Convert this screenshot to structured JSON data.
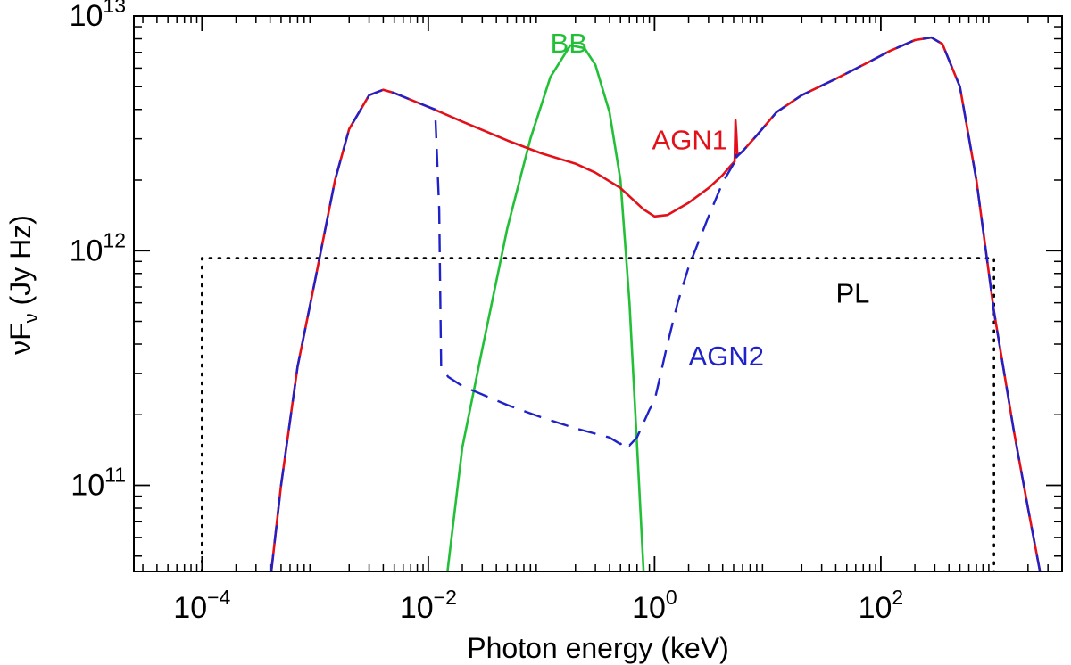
{
  "chart_data": {
    "type": "line",
    "xlabel": "Photon energy (keV)",
    "ylabel": {
      "base": "νF",
      "sub": "ν",
      "unit": " (Jy Hz)"
    },
    "x_scale": "log",
    "y_scale": "log",
    "xlim": [
      2.5e-05,
      4000
    ],
    "ylim": [
      43000000000.0,
      10000000000000.0
    ],
    "x_major_ticks": [
      {
        "value": 0.0001,
        "base": "10",
        "exp": "−4"
      },
      {
        "value": 0.01,
        "base": "10",
        "exp": "−2"
      },
      {
        "value": 1,
        "base": "10",
        "exp": "0"
      },
      {
        "value": 100,
        "base": "10",
        "exp": "2"
      }
    ],
    "y_major_ticks": [
      {
        "value": 100000000000.0,
        "base": "10",
        "exp": "11"
      },
      {
        "value": 1000000000000.0,
        "base": "10",
        "exp": "12"
      },
      {
        "value": 10000000000000.0,
        "base": "10",
        "exp": "13"
      }
    ],
    "grid": false,
    "series": [
      {
        "name": "BB",
        "color": "#22c037",
        "style": "solid",
        "label_at": [
          0.12,
          7000000000000.0
        ],
        "x": [
          0.0148,
          0.02,
          0.03,
          0.05,
          0.08,
          0.12,
          0.18,
          0.24,
          0.3,
          0.4,
          0.5,
          0.6,
          0.7,
          0.8
        ],
        "y": [
          43000000000.0,
          145000000000.0,
          380000000000.0,
          1250000000000.0,
          3000000000000.0,
          5500000000000.0,
          7500000000000.0,
          7300000000000.0,
          6200000000000.0,
          3900000000000.0,
          2000000000000.0,
          600000000000.0,
          150000000000.0,
          43000000000.0
        ]
      },
      {
        "name": "AGN1",
        "color": "#e3101a",
        "style": "solid",
        "label_at": [
          0.95,
          2700000000000.0
        ],
        "x": [
          0.00041,
          0.0005,
          0.0007,
          0.001,
          0.0015,
          0.002,
          0.003,
          0.004,
          0.005,
          0.007,
          0.01,
          0.02,
          0.05,
          0.1,
          0.2,
          0.3,
          0.5,
          0.8,
          1.0,
          1.3,
          2.0,
          3.0,
          4.0,
          4.7,
          5.1,
          5.2,
          5.3,
          5.4,
          6.0,
          8.0,
          12,
          20,
          40,
          80,
          120,
          200,
          280,
          350,
          500,
          700,
          1000,
          1500,
          2000,
          2550
        ],
        "y": [
          43000000000.0,
          100000000000.0,
          320000000000.0,
          750000000000.0,
          2000000000000.0,
          3300000000000.0,
          4600000000000.0,
          4850000000000.0,
          4700000000000.0,
          4400000000000.0,
          4100000000000.0,
          3550000000000.0,
          2950000000000.0,
          2600000000000.0,
          2350000000000.0,
          2150000000000.0,
          1850000000000.0,
          1500000000000.0,
          1400000000000.0,
          1420000000000.0,
          1600000000000.0,
          1850000000000.0,
          2100000000000.0,
          2300000000000.0,
          2400000000000.0,
          3600000000000.0,
          3100000000000.0,
          2550000000000.0,
          2650000000000.0,
          3100000000000.0,
          3900000000000.0,
          4600000000000.0,
          5400000000000.0,
          6400000000000.0,
          7100000000000.0,
          7900000000000.0,
          8100000000000.0,
          7600000000000.0,
          5000000000000.0,
          2000000000000.0,
          550000000000.0,
          170000000000.0,
          80000000000.0,
          43000000000.0
        ]
      },
      {
        "name": "AGN2",
        "color": "#1e22c8",
        "style": "dashed",
        "label_at": [
          2.0,
          325000000000.0
        ],
        "x": [
          0.00041,
          0.0005,
          0.0007,
          0.001,
          0.0015,
          0.002,
          0.003,
          0.004,
          0.005,
          0.007,
          0.01,
          0.0115,
          0.0125,
          0.013,
          0.015,
          0.02,
          0.05,
          0.1,
          0.2,
          0.4,
          0.5,
          0.55,
          0.6,
          0.7,
          0.8,
          0.9,
          1.0,
          1.1,
          1.3,
          1.6,
          2.0,
          3.0,
          4.0,
          5.0,
          5.2,
          5.3,
          5.5,
          6.0,
          8.0,
          12,
          20,
          40,
          80,
          120,
          200,
          280,
          350,
          500,
          700,
          1000,
          1500,
          2000,
          2550
        ],
        "y": [
          43000000000.0,
          100000000000.0,
          320000000000.0,
          750000000000.0,
          2000000000000.0,
          3300000000000.0,
          4600000000000.0,
          4850000000000.0,
          4700000000000.0,
          4400000000000.0,
          4100000000000.0,
          4000000000000.0,
          1500000000000.0,
          320000000000.0,
          290000000000.0,
          265000000000.0,
          220000000000.0,
          195000000000.0,
          175000000000.0,
          160000000000.0,
          150000000000.0,
          155000000000.0,
          148000000000.0,
          160000000000.0,
          185000000000.0,
          210000000000.0,
          230000000000.0,
          280000000000.0,
          400000000000.0,
          600000000000.0,
          850000000000.0,
          1400000000000.0,
          1950000000000.0,
          2350000000000.0,
          2600000000000.0,
          2500000000000.0,
          2550000000000.0,
          2650000000000.0,
          3100000000000.0,
          3900000000000.0,
          4600000000000.0,
          5400000000000.0,
          6400000000000.0,
          7100000000000.0,
          7900000000000.0,
          8100000000000.0,
          7600000000000.0,
          5000000000000.0,
          2000000000000.0,
          550000000000.0,
          170000000000.0,
          80000000000.0,
          43000000000.0
        ]
      },
      {
        "name": "PL",
        "color": "#000000",
        "style": "dotted",
        "label_at": [
          40,
          600000000000.0
        ],
        "x": [
          0.0001,
          0.0001,
          1000,
          1000
        ],
        "y": [
          43000000000.0,
          930000000000.0,
          930000000000.0,
          43000000000.0
        ]
      }
    ]
  }
}
